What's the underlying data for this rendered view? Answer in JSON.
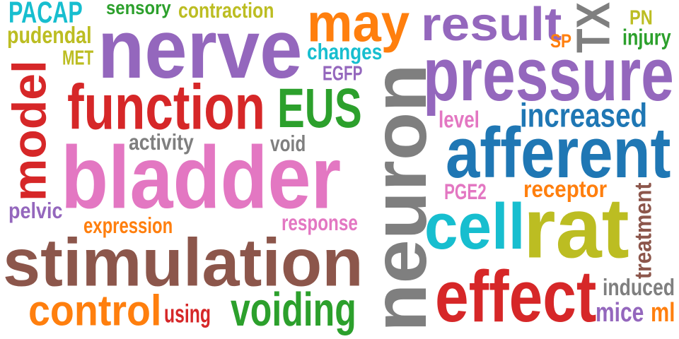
{
  "words": [
    {
      "text": "PACAP",
      "color": "#17becf"
    },
    {
      "text": "sensory",
      "color": "#2ca02c"
    },
    {
      "text": "contraction",
      "color": "#bcbd22"
    },
    {
      "text": "may",
      "color": "#ff7f0e"
    },
    {
      "text": "result",
      "color": "#9467bd"
    },
    {
      "text": "TX",
      "color": "#7f7f7f"
    },
    {
      "text": "PN",
      "color": "#bcbd22"
    },
    {
      "text": "pudendal",
      "color": "#bcbd22"
    },
    {
      "text": "nerve",
      "color": "#9467bd"
    },
    {
      "text": "SP",
      "color": "#ff7f0e"
    },
    {
      "text": "injury",
      "color": "#2ca02c"
    },
    {
      "text": "MET",
      "color": "#bcbd22"
    },
    {
      "text": "changes",
      "color": "#17becf"
    },
    {
      "text": "model",
      "color": "#d62728"
    },
    {
      "text": "EGFP",
      "color": "#9467bd"
    },
    {
      "text": "pressure",
      "color": "#9467bd"
    },
    {
      "text": "function",
      "color": "#d62728"
    },
    {
      "text": "EUS",
      "color": "#2ca02c"
    },
    {
      "text": "increased",
      "color": "#1f77b4"
    },
    {
      "text": "level",
      "color": "#e377c2"
    },
    {
      "text": "neuron",
      "color": "#7f7f7f"
    },
    {
      "text": "activity",
      "color": "#7f7f7f"
    },
    {
      "text": "void",
      "color": "#7f7f7f"
    },
    {
      "text": "afferent",
      "color": "#1f77b4"
    },
    {
      "text": "bladder",
      "color": "#e377c2"
    },
    {
      "text": "PGE2",
      "color": "#e377c2"
    },
    {
      "text": "receptor",
      "color": "#ff7f0e"
    },
    {
      "text": "treatment",
      "color": "#8c564b"
    },
    {
      "text": "pelvic",
      "color": "#9467bd"
    },
    {
      "text": "cell",
      "color": "#17becf"
    },
    {
      "text": "rat",
      "color": "#bcbd22"
    },
    {
      "text": "expression",
      "color": "#ff7f0e"
    },
    {
      "text": "response",
      "color": "#e377c2"
    },
    {
      "text": "stimulation",
      "color": "#8c564b"
    },
    {
      "text": "effect",
      "color": "#d62728"
    },
    {
      "text": "induced",
      "color": "#7f7f7f"
    },
    {
      "text": "control",
      "color": "#ff7f0e"
    },
    {
      "text": "using",
      "color": "#d62728"
    },
    {
      "text": "voiding",
      "color": "#2ca02c"
    },
    {
      "text": "mice",
      "color": "#9467bd"
    },
    {
      "text": "ml",
      "color": "#ff7f0e"
    }
  ]
}
